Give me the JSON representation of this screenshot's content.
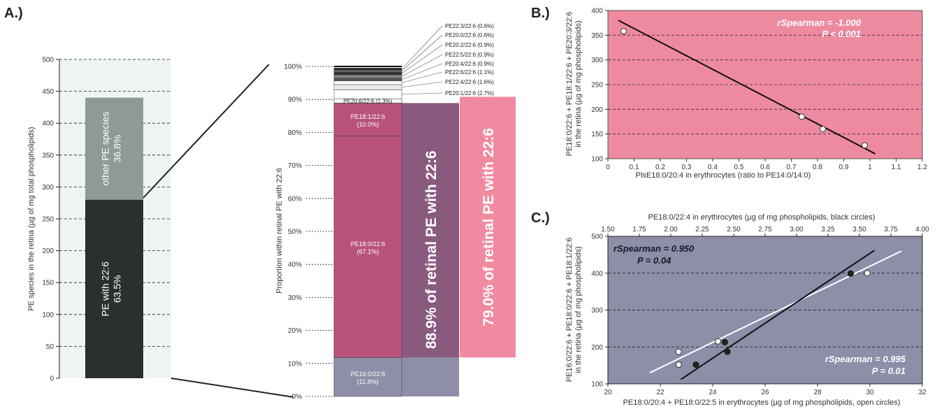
{
  "panel_labels": {
    "a": "A.)",
    "b": "B.)",
    "c": "C.)"
  },
  "chart_data": [
    {
      "id": "A-left",
      "type": "bar",
      "ylabel": "PE species in the retina (µg of mg total phospholipids)",
      "ylim": [
        0,
        500
      ],
      "yticks": [
        "0",
        "50",
        "100",
        "150",
        "200",
        "250",
        "300",
        "350",
        "400",
        "450",
        "500"
      ],
      "stack": [
        {
          "name": "PE with 22:6",
          "pct": "63.5%",
          "value": 280,
          "color": "#2b2f30"
        },
        {
          "name": "other PE species",
          "pct": "36.8%",
          "value": 160,
          "color": "#8e9a98"
        }
      ],
      "grid": true
    },
    {
      "id": "A-right",
      "type": "bar",
      "ylabel": "Proportion within retinal PE with 22:6",
      "ylim": [
        0,
        100
      ],
      "yticks": [
        "0%",
        "10%",
        "20%",
        "30%",
        "40%",
        "50%",
        "60%",
        "70%",
        "80%",
        "90%",
        "100%"
      ],
      "segments": [
        {
          "label": "PE16:0/22:6",
          "pct": "(11.8%)",
          "value": 11.8,
          "color": "#8e8ea8"
        },
        {
          "label": "PE18:0/22:6",
          "pct": "(67.1%)",
          "value": 67.1,
          "color": "#b8527a"
        },
        {
          "label": "PE18:1/22:6",
          "pct": "(10.0%)",
          "value": 10.0,
          "color": "#b8527a"
        },
        {
          "label": "PE20:6/22:6 (1.3%)",
          "pct": "",
          "value": 1.3,
          "color": "#ffffff"
        }
      ],
      "small_species": [
        {
          "label": "PE20:1/22:6 (2.7%)",
          "value": 2.7,
          "color": "#ffffff"
        },
        {
          "label": "PE22:4/22:6 (1.6%)",
          "value": 1.6,
          "color": "#e8ecec"
        },
        {
          "label": "PE22:6/22:6 (1.1%)",
          "value": 1.1,
          "color": "#ffffff"
        },
        {
          "label": "PE20:4/22:6 (0.9%)",
          "value": 0.9,
          "color": "#555555"
        },
        {
          "label": "PE22:5/22:6 (0.9%)",
          "value": 0.9,
          "color": "#888888"
        },
        {
          "label": "PE20:2/22:6 (0.9%)",
          "value": 0.9,
          "color": "#333333"
        },
        {
          "label": "PE20:0/22:6 (0.6%)",
          "value": 0.6,
          "color": "#666666"
        },
        {
          "label": "PE22:3/22:6 (0.6%)",
          "value": 0.6,
          "color": "#222222"
        }
      ],
      "overlays": [
        {
          "text": "88.9% of retinal PE with 22:6",
          "from": 0,
          "to": 88.9,
          "color": "#8a5a7e"
        },
        {
          "text": "79.0% of retinal PE with 22:6",
          "from": 11.8,
          "to": 90.8,
          "color": "#f08aa0"
        }
      ]
    },
    {
      "id": "B",
      "type": "scatter",
      "xlabel": "PlsE18:0/20:4 in erythrocytes (ratio to PE14:0/14:0)",
      "ylabel_lines": [
        "PE18:0/22:6 + PE18:1/22:6 + PE20:3/22:6",
        "in the retina (µg of mg phospholipids)"
      ],
      "xlim": [
        0,
        1.2
      ],
      "ylim": [
        100,
        400
      ],
      "xticks": [
        "0",
        "0.1",
        "0.2",
        "0.3",
        "0.4",
        "0.5",
        "0.6",
        "0.7",
        "0.8",
        "0.9",
        "1",
        "1.1",
        "1.2"
      ],
      "yticks": [
        "100",
        "150",
        "200",
        "250",
        "300",
        "350",
        "400"
      ],
      "background": "#ee8aa0",
      "points": [
        [
          0.06,
          358
        ],
        [
          0.74,
          185
        ],
        [
          0.82,
          160
        ],
        [
          0.98,
          127
        ]
      ],
      "fit": [
        [
          0.04,
          380
        ],
        [
          1.02,
          110
        ]
      ],
      "stat_line1": "rSpearman = -1.000",
      "stat_line2": "P < 0.001",
      "grid": true
    },
    {
      "id": "C",
      "type": "scatter",
      "xlabel": "PE18:0/20:4 + PE18:0/22:5 in erythrocytes (µg of mg phospholipids, open circles)",
      "x2label": "PE18:0/22:4 in erythrocytes (µg of mg phospholipids, black circles)",
      "ylabel_lines": [
        "PE16:0/22:6 + PE18:0/22:6 + PE18:1/22:6",
        "in the retina (µg of mg phospholipids)"
      ],
      "xlim": [
        20,
        32
      ],
      "x2lim": [
        1.5,
        4.0
      ],
      "ylim": [
        100,
        500
      ],
      "xticks": [
        "20",
        "22",
        "24",
        "26",
        "28",
        "30",
        "32"
      ],
      "x2ticks": [
        "1.50",
        "1.75",
        "2.00",
        "2.25",
        "2.50",
        "2.75",
        "3.00",
        "3.25",
        "3.50",
        "3.75",
        "4.00"
      ],
      "yticks": [
        "100",
        "200",
        "300",
        "400",
        "500"
      ],
      "background": "#8d8ea8",
      "open_points": [
        [
          22.7,
          187
        ],
        [
          22.7,
          152
        ],
        [
          24.2,
          215
        ],
        [
          29.9,
          400
        ]
      ],
      "black_points": [
        [
          2.2,
          152
        ],
        [
          2.43,
          213
        ],
        [
          2.45,
          187
        ],
        [
          3.43,
          399
        ]
      ],
      "open_fit": [
        [
          21.6,
          130
        ],
        [
          31.2,
          460
        ]
      ],
      "black_fit_x2": [
        [
          2.08,
          112
        ],
        [
          3.62,
          462
        ]
      ],
      "stat_black_line1": "rSpearman = 0.950",
      "stat_black_line2": "P = 0.04",
      "stat_open_line1": "rSpearman = 0.995",
      "stat_open_line2": "P = 0.01",
      "grid": true
    }
  ]
}
